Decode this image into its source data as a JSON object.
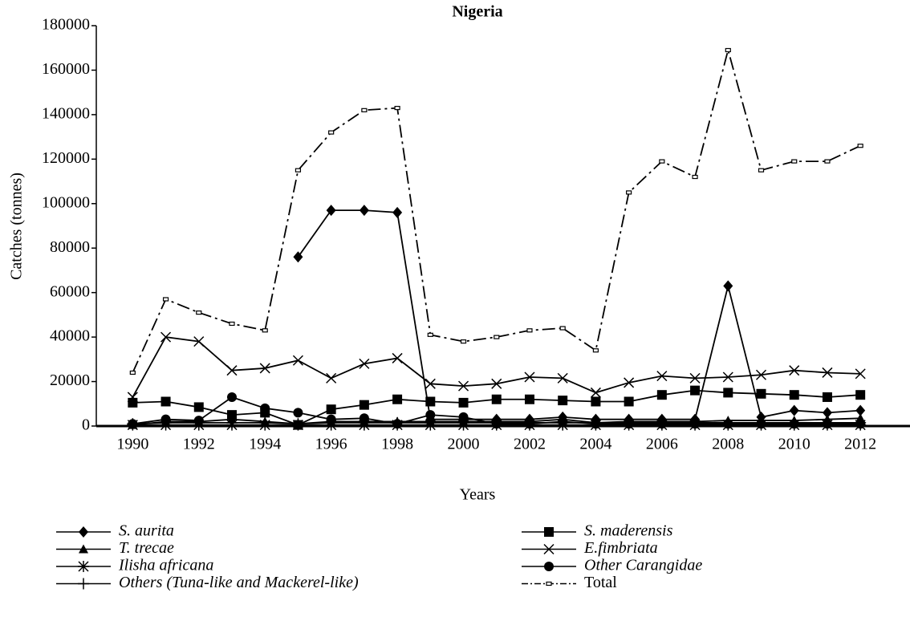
{
  "chart_data": {
    "type": "line",
    "title": "Nigeria",
    "xlabel": "Years",
    "ylabel": "Catches (tonnes)",
    "x": [
      1990,
      1991,
      1992,
      1993,
      1994,
      1995,
      1996,
      1997,
      1998,
      1999,
      2000,
      2001,
      2002,
      2003,
      2004,
      2005,
      2006,
      2007,
      2008,
      2009,
      2010,
      2011,
      2012
    ],
    "xlim": [
      1988.9,
      2013.5
    ],
    "xticks": [
      1990,
      1992,
      1994,
      1996,
      1998,
      2000,
      2002,
      2004,
      2006,
      2008,
      2010,
      2012
    ],
    "ylim": [
      0,
      180000
    ],
    "yticks": [
      0,
      20000,
      40000,
      60000,
      80000,
      100000,
      120000,
      140000,
      160000,
      180000
    ],
    "series": [
      {
        "name": "S. aurita",
        "color": "#000000",
        "marker": "diamond",
        "italic": true,
        "values": [
          null,
          null,
          null,
          null,
          null,
          76000,
          97000,
          97000,
          96000,
          3000,
          3000,
          3000,
          3000,
          4000,
          3000,
          3000,
          3000,
          3000,
          63000,
          4000,
          7000,
          6000,
          7000
        ]
      },
      {
        "name": "S. maderensis",
        "color": "#000000",
        "marker": "square",
        "italic": true,
        "values": [
          10500,
          11000,
          8500,
          5000,
          6000,
          500,
          7500,
          9500,
          12000,
          11000,
          10500,
          12000,
          12000,
          11500,
          11000,
          11000,
          14000,
          16000,
          15000,
          14500,
          14000,
          13000,
          14000
        ]
      },
      {
        "name": "T. trecae",
        "color": "#000000",
        "marker": "triangle",
        "italic": true,
        "values": [
          500,
          2000,
          2000,
          3000,
          2000,
          1000,
          2000,
          2000,
          2000,
          2000,
          2000,
          2000,
          2000,
          3000,
          1500,
          2000,
          2000,
          2000,
          2500,
          2500,
          2500,
          3000,
          3500
        ]
      },
      {
        "name": "E.fimbriata",
        "color": "#000000",
        "marker": "x",
        "italic": true,
        "values": [
          13000,
          40000,
          38000,
          25000,
          26000,
          29500,
          21500,
          28000,
          30500,
          19000,
          18000,
          19000,
          22000,
          21500,
          15000,
          19500,
          22500,
          21500,
          22000,
          23000,
          25000,
          24000,
          23500
        ]
      },
      {
        "name": "Ilisha africana",
        "color": "#000000",
        "marker": "asterisk",
        "italic": true,
        "values": [
          500,
          500,
          500,
          500,
          500,
          500,
          500,
          500,
          500,
          500,
          500,
          500,
          500,
          500,
          500,
          500,
          500,
          500,
          500,
          500,
          500,
          500,
          500
        ]
      },
      {
        "name": "Other Carangidae",
        "color": "#000000",
        "marker": "circle",
        "italic": true,
        "values": [
          1000,
          3000,
          2500,
          13000,
          8000,
          6000,
          3000,
          3500,
          1000,
          5000,
          4000,
          1000,
          1000,
          2000,
          1000,
          1000,
          1000,
          1000,
          1000,
          1000,
          1000,
          1000,
          1000
        ]
      },
      {
        "name": "Others (Tuna-like and Mackerel-like)",
        "color": "#000000",
        "marker": "plus",
        "italic": true,
        "values": [
          1000,
          1500,
          1500,
          1500,
          1500,
          1000,
          1500,
          1500,
          1500,
          1500,
          1500,
          1500,
          1500,
          1500,
          1500,
          1500,
          1500,
          1500,
          1500,
          1500,
          1500,
          1500,
          1500
        ]
      },
      {
        "name": "Total",
        "color": "#000000",
        "marker": "smallsquare",
        "italic": false,
        "dash": "dashdot",
        "values": [
          24000,
          57000,
          51000,
          46000,
          43000,
          115000,
          132000,
          142000,
          143000,
          41000,
          38000,
          40000,
          43000,
          44000,
          34000,
          105000,
          119000,
          112000,
          169000,
          115000,
          119000,
          119000,
          126000
        ]
      }
    ]
  }
}
